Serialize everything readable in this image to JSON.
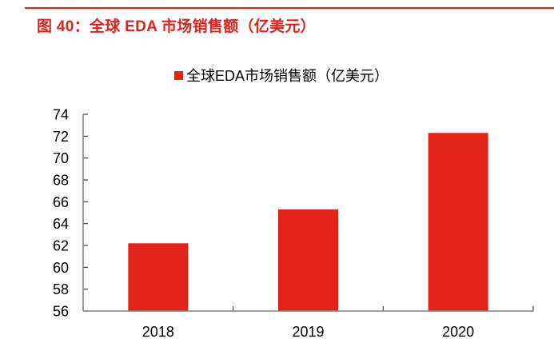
{
  "figure": {
    "title": "图 40：全球 EDA 市场销售额（亿美元）"
  },
  "colors": {
    "accent": "#e0221a",
    "bar": "#e2231a",
    "axis": "#808080",
    "text": "#000000"
  },
  "chart_data": {
    "type": "bar",
    "title": "",
    "xlabel": "",
    "ylabel": "",
    "categories": [
      "2018",
      "2019",
      "2020"
    ],
    "series": [
      {
        "name": "全球EDA市场销售额（亿美元）",
        "values": [
          62.2,
          65.3,
          72.3
        ]
      }
    ],
    "ylim": [
      56,
      74
    ],
    "yticks": [
      56,
      58,
      60,
      62,
      64,
      66,
      68,
      70,
      72,
      74
    ],
    "ytick_labels": [
      "56",
      "58",
      "60",
      "62",
      "64",
      "66",
      "68",
      "70",
      "72",
      "74"
    ],
    "grid": false,
    "legend": "top-center"
  }
}
